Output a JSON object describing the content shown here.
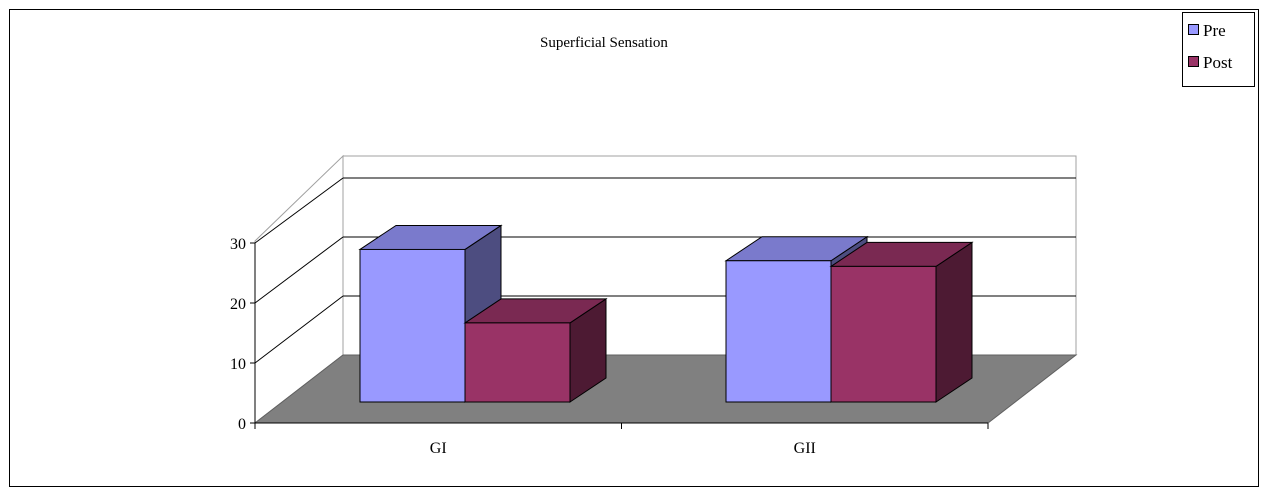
{
  "chart_data": {
    "type": "bar",
    "style": "3d-clustered-column",
    "title": "Superficial Sensation",
    "categories": [
      "GI",
      "GII"
    ],
    "series": [
      {
        "name": "Pre",
        "values": [
          27,
          25
        ],
        "color": "#9999ff",
        "side_color": "#4d4d80",
        "top_color": "#7a7acc"
      },
      {
        "name": "Post",
        "values": [
          14,
          24
        ],
        "color": "#993366",
        "side_color": "#4d1a33",
        "top_color": "#7a2952"
      }
    ],
    "ylim": [
      0,
      30
    ],
    "yticks": [
      0,
      10,
      20,
      30
    ],
    "grid": true,
    "floor_color": "#808080",
    "legend_position": "top-right"
  }
}
